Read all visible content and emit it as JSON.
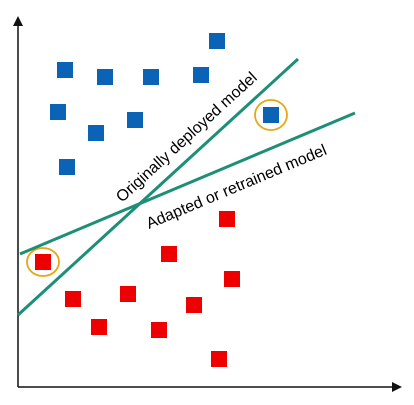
{
  "colors": {
    "blue": "#0A63B4",
    "red": "#EE0000",
    "line": "#1E8F77",
    "circle": "#E7A712",
    "axis": "#111111"
  },
  "labels": {
    "original": "Originally deployed model",
    "adapted": "Adapted or retrained model"
  }
}
